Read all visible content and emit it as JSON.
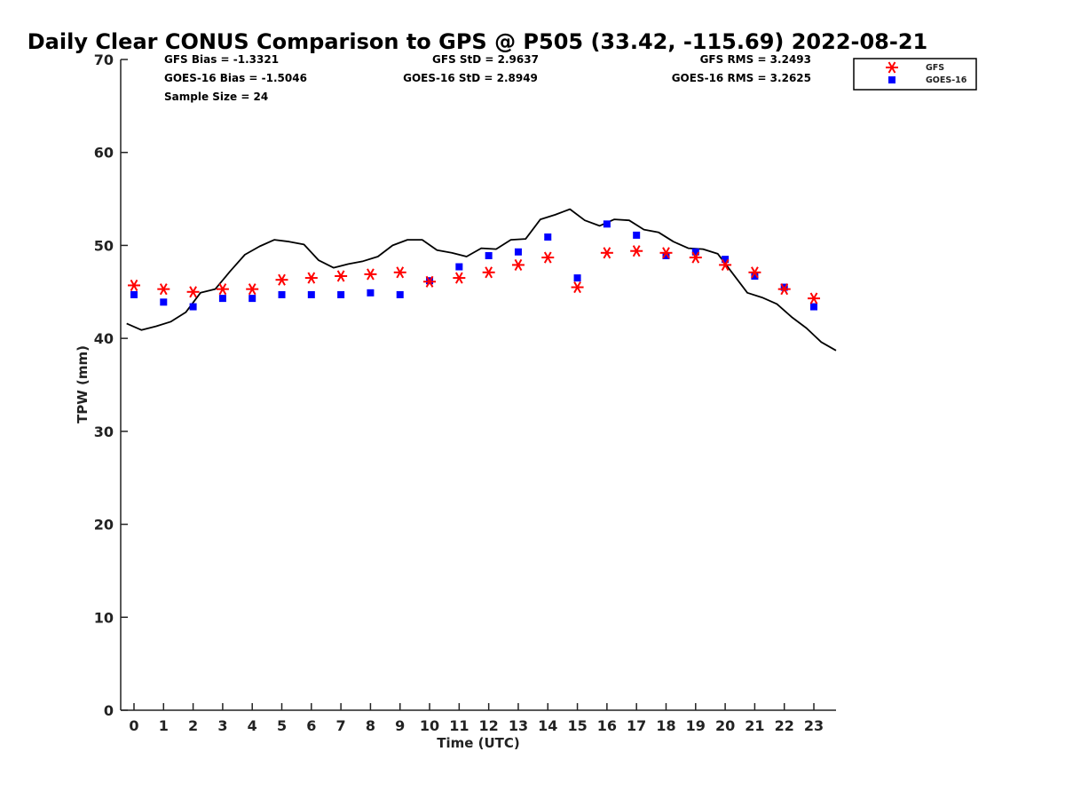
{
  "chart_data": {
    "type": "scatter",
    "title": "Daily Clear CONUS Comparison to GPS @ P505 (33.42, -115.69) 2022-08-21",
    "xlabel": "Time (UTC)",
    "ylabel": "TPW (mm)",
    "xlim": [
      -0.45,
      23.75
    ],
    "ylim": [
      0,
      70
    ],
    "xticks": [
      0,
      1,
      2,
      3,
      4,
      5,
      6,
      7,
      8,
      9,
      10,
      11,
      12,
      13,
      14,
      15,
      16,
      17,
      18,
      19,
      20,
      21,
      22,
      23
    ],
    "yticks": [
      0,
      10,
      20,
      30,
      40,
      50,
      60,
      70
    ],
    "grid": false,
    "legend_position": "top-right",
    "stats": {
      "gfs_bias": "GFS Bias = -1.3321",
      "goes_bias": "GOES-16 Bias = -1.5046",
      "sample_size": "Sample Size = 24",
      "gfs_std": "GFS StD = 2.9637",
      "goes_std": "GOES-16 StD = 2.8949",
      "gfs_rms": "GFS RMS = 3.2493",
      "goes_rms": "GOES-16 RMS = 3.2625"
    },
    "series": [
      {
        "name": "GFS",
        "marker": "asterisk",
        "color": "#ff0000",
        "x": [
          0,
          1,
          2,
          3,
          4,
          5,
          6,
          7,
          8,
          9,
          10,
          11,
          12,
          13,
          14,
          15,
          16,
          17,
          18,
          19,
          20,
          21,
          22,
          23
        ],
        "values": [
          45.7,
          45.3,
          45.0,
          45.3,
          45.3,
          46.3,
          46.5,
          46.7,
          46.9,
          47.1,
          46.1,
          46.5,
          47.1,
          47.9,
          48.7,
          45.5,
          49.2,
          49.4,
          49.2,
          48.7,
          47.9,
          47.1,
          45.3,
          44.3
        ]
      },
      {
        "name": "GOES-16",
        "marker": "square",
        "color": "#0000ff",
        "x": [
          0,
          1,
          2,
          3,
          4,
          5,
          6,
          7,
          8,
          9,
          10,
          11,
          12,
          13,
          14,
          15,
          16,
          17,
          18,
          19,
          20,
          21,
          22,
          23
        ],
        "values": [
          44.7,
          43.9,
          43.4,
          44.3,
          44.3,
          44.7,
          44.7,
          44.7,
          44.9,
          44.7,
          46.2,
          47.7,
          48.9,
          49.3,
          50.9,
          46.5,
          52.3,
          51.1,
          48.9,
          49.3,
          48.5,
          46.7,
          45.5,
          43.4
        ]
      },
      {
        "name": "GPS",
        "marker": "line",
        "color": "#000000",
        "x": [
          -0.25,
          0.25,
          0.75,
          1.25,
          1.75,
          2.25,
          2.75,
          3.25,
          3.75,
          4.25,
          4.75,
          5.25,
          5.75,
          6.25,
          6.75,
          7.25,
          7.75,
          8.25,
          8.75,
          9.25,
          9.75,
          10.25,
          10.75,
          11.25,
          11.75,
          12.25,
          12.75,
          13.25,
          13.75,
          14.25,
          14.75,
          15.25,
          15.75,
          16.25,
          16.75,
          17.25,
          17.75,
          18.25,
          18.75,
          19.25,
          19.75,
          20.25,
          20.75,
          21.25,
          21.75,
          22.25,
          22.75,
          23.25,
          23.75
        ],
        "values": [
          41.6,
          40.9,
          41.3,
          41.8,
          42.8,
          44.9,
          45.3,
          47.2,
          49.0,
          49.9,
          50.6,
          50.4,
          50.1,
          48.4,
          47.6,
          48.0,
          48.3,
          48.8,
          50.0,
          50.6,
          50.6,
          49.5,
          49.2,
          48.8,
          49.7,
          49.6,
          50.6,
          50.7,
          52.8,
          53.3,
          53.9,
          52.7,
          52.1,
          52.8,
          52.7,
          51.7,
          51.4,
          50.4,
          49.7,
          49.6,
          49.1,
          47.0,
          44.9,
          44.4,
          43.7,
          42.3,
          41.1,
          39.6,
          38.7
        ]
      }
    ]
  }
}
